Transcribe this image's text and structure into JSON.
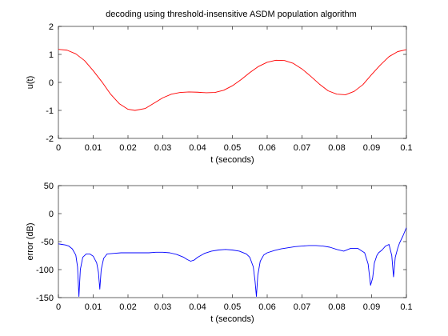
{
  "figure": {
    "title": "decoding using threshold-insensitive ASDM population algorithm"
  },
  "chart_data": [
    {
      "type": "line",
      "title": "decoding using threshold-insensitive ASDM population algorithm",
      "xlabel": "t (seconds)",
      "ylabel": "u(t)",
      "xlim": [
        0,
        0.1
      ],
      "ylim": [
        -2,
        2
      ],
      "xticks": [
        "0",
        "0.01",
        "0.02",
        "0.03",
        "0.04",
        "0.05",
        "0.06",
        "0.07",
        "0.08",
        "0.09",
        "0.1"
      ],
      "yticks": [
        "-2",
        "-1",
        "0",
        "1",
        "2"
      ],
      "xtick_values": [
        0,
        0.01,
        0.02,
        0.03,
        0.04,
        0.05,
        0.06,
        0.07,
        0.08,
        0.09,
        0.1
      ],
      "ytick_values": [
        -2,
        -1,
        0,
        1,
        2
      ],
      "grid": false,
      "series": [
        {
          "color": "#ff0000",
          "x": [
            0,
            0.0025,
            0.005,
            0.0075,
            0.01,
            0.0125,
            0.015,
            0.0175,
            0.02,
            0.022,
            0.025,
            0.0275,
            0.03,
            0.0325,
            0.035,
            0.0375,
            0.04,
            0.0425,
            0.045,
            0.0475,
            0.05,
            0.0525,
            0.055,
            0.0575,
            0.06,
            0.0625,
            0.065,
            0.0675,
            0.07,
            0.0725,
            0.075,
            0.0775,
            0.08,
            0.0825,
            0.085,
            0.0875,
            0.09,
            0.0925,
            0.095,
            0.0975,
            0.1
          ],
          "y": [
            1.18,
            1.15,
            1.02,
            0.78,
            0.42,
            0.02,
            -0.42,
            -0.76,
            -0.96,
            -1.0,
            -0.93,
            -0.74,
            -0.55,
            -0.42,
            -0.36,
            -0.34,
            -0.35,
            -0.37,
            -0.36,
            -0.28,
            -0.12,
            0.1,
            0.35,
            0.57,
            0.72,
            0.79,
            0.78,
            0.68,
            0.48,
            0.22,
            -0.06,
            -0.3,
            -0.42,
            -0.44,
            -0.32,
            -0.08,
            0.28,
            0.62,
            0.92,
            1.1,
            1.17
          ]
        }
      ]
    },
    {
      "type": "line",
      "title": "",
      "xlabel": "t (seconds)",
      "ylabel": "error (dB)",
      "xlim": [
        0,
        0.1
      ],
      "ylim": [
        -150,
        50
      ],
      "xticks": [
        "0",
        "0.01",
        "0.02",
        "0.03",
        "0.04",
        "0.05",
        "0.06",
        "0.07",
        "0.08",
        "0.09",
        "0.1"
      ],
      "yticks": [
        "-150",
        "-100",
        "-50",
        "0",
        "50"
      ],
      "xtick_values": [
        0,
        0.01,
        0.02,
        0.03,
        0.04,
        0.05,
        0.06,
        0.07,
        0.08,
        0.09,
        0.1
      ],
      "ytick_values": [
        -150,
        -100,
        -50,
        0,
        50
      ],
      "grid": false,
      "series": [
        {
          "color": "#0000ff",
          "x": [
            0,
            0.001,
            0.002,
            0.003,
            0.004,
            0.005,
            0.0055,
            0.0059,
            0.0063,
            0.007,
            0.008,
            0.009,
            0.01,
            0.011,
            0.0115,
            0.0119,
            0.0123,
            0.013,
            0.014,
            0.016,
            0.018,
            0.02,
            0.022,
            0.024,
            0.026,
            0.028,
            0.03,
            0.032,
            0.034,
            0.036,
            0.037,
            0.038,
            0.039,
            0.04,
            0.042,
            0.044,
            0.046,
            0.048,
            0.05,
            0.052,
            0.054,
            0.055,
            0.056,
            0.0565,
            0.0569,
            0.0573,
            0.058,
            0.059,
            0.06,
            0.062,
            0.064,
            0.066,
            0.068,
            0.07,
            0.072,
            0.074,
            0.076,
            0.078,
            0.08,
            0.082,
            0.084,
            0.086,
            0.088,
            0.089,
            0.0897,
            0.0903,
            0.0908,
            0.0915,
            0.092,
            0.093,
            0.094,
            0.095,
            0.0958,
            0.0963,
            0.0968,
            0.0975,
            0.098,
            0.099,
            0.1
          ],
          "y": [
            -54,
            -55,
            -56,
            -58,
            -63,
            -74,
            -95,
            -148,
            -100,
            -78,
            -72,
            -72,
            -76,
            -88,
            -105,
            -135,
            -100,
            -80,
            -72,
            -71,
            -70,
            -70,
            -70,
            -70,
            -70,
            -69,
            -69,
            -70,
            -73,
            -78,
            -82,
            -85,
            -83,
            -78,
            -71,
            -67,
            -65,
            -64,
            -65,
            -67,
            -72,
            -78,
            -95,
            -120,
            -148,
            -110,
            -85,
            -74,
            -70,
            -66,
            -63,
            -61,
            -59,
            -58,
            -57,
            -57,
            -58,
            -60,
            -64,
            -67,
            -62,
            -62,
            -70,
            -90,
            -128,
            -115,
            -88,
            -75,
            -70,
            -65,
            -58,
            -55,
            -75,
            -113,
            -78,
            -62,
            -53,
            -40,
            -25
          ]
        }
      ]
    }
  ]
}
